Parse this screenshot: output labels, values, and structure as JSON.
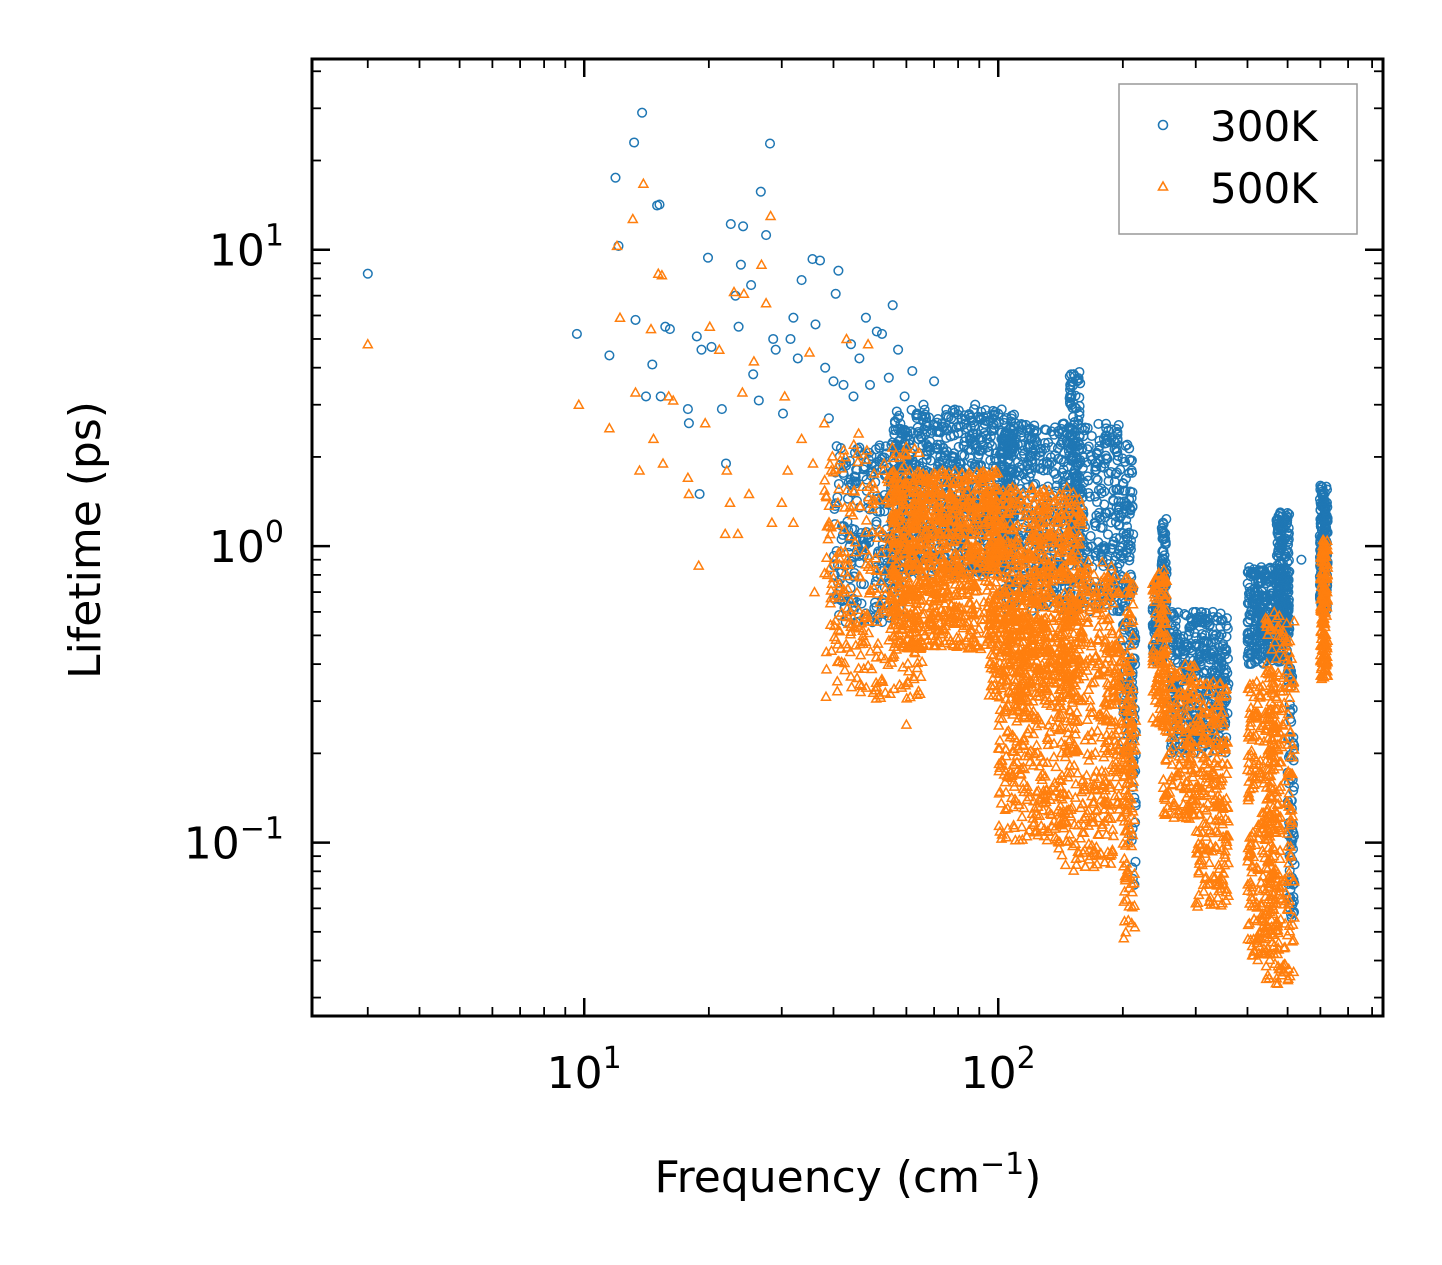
{
  "chart_data": {
    "type": "scatter",
    "title": "",
    "xlabel": "Frequency (cm",
    "xlabel_sup": "−1",
    "xlabel_end": ")",
    "ylabel": "Lifetime (ps)",
    "xscale": "log",
    "yscale": "log",
    "xlim": [
      2.2,
      850
    ],
    "ylim": [
      0.026,
      44
    ],
    "x_ticks": [
      {
        "value": 10,
        "base": "10",
        "exp": "1"
      },
      {
        "value": 100,
        "base": "10",
        "exp": "2"
      }
    ],
    "y_ticks": [
      {
        "value": 0.1,
        "base": "10",
        "exp": "−1"
      },
      {
        "value": 1,
        "base": "10",
        "exp": "0"
      },
      {
        "value": 10,
        "base": "10",
        "exp": "1"
      }
    ],
    "legend_position": "top-right",
    "series": [
      {
        "name": "300K",
        "marker": "circle",
        "color": "#1f77b4",
        "points": [
          [
            3.0,
            8.3
          ],
          [
            9.6,
            5.2
          ],
          [
            11.5,
            4.4
          ],
          [
            11.9,
            17.5
          ],
          [
            12.1,
            10.3
          ],
          [
            13.2,
            23.0
          ],
          [
            13.3,
            5.8
          ],
          [
            13.8,
            29.0
          ],
          [
            14.1,
            3.2
          ],
          [
            14.6,
            4.1
          ],
          [
            15.0,
            14.1
          ],
          [
            15.2,
            14.2
          ],
          [
            15.3,
            3.2
          ],
          [
            15.7,
            5.5
          ],
          [
            16.1,
            5.4
          ],
          [
            17.8,
            2.9
          ],
          [
            17.9,
            2.6
          ],
          [
            18.7,
            5.1
          ],
          [
            19.0,
            1.5
          ],
          [
            19.2,
            4.6
          ],
          [
            19.9,
            9.4
          ],
          [
            20.3,
            4.7
          ],
          [
            21.5,
            2.9
          ],
          [
            22.0,
            1.9
          ],
          [
            22.6,
            12.2
          ],
          [
            23.2,
            7.0
          ],
          [
            23.6,
            5.5
          ],
          [
            23.9,
            8.9
          ],
          [
            24.2,
            12.0
          ],
          [
            25.3,
            7.6
          ],
          [
            25.6,
            3.8
          ],
          [
            26.4,
            3.1
          ],
          [
            26.7,
            15.7
          ],
          [
            27.5,
            11.2
          ],
          [
            28.1,
            22.8
          ],
          [
            28.6,
            5.0
          ],
          [
            29.0,
            4.6
          ],
          [
            30.2,
            2.8
          ],
          [
            31.5,
            5.0
          ],
          [
            32.0,
            5.9
          ],
          [
            32.8,
            4.3
          ],
          [
            33.5,
            7.9
          ],
          [
            35.6,
            9.3
          ],
          [
            36.2,
            5.6
          ],
          [
            37.1,
            9.2
          ],
          [
            38.2,
            4.0
          ],
          [
            39.0,
            2.7
          ],
          [
            40.0,
            3.6
          ],
          [
            40.5,
            7.1
          ],
          [
            41.1,
            8.5
          ],
          [
            42.3,
            3.5
          ],
          [
            44.1,
            4.8
          ],
          [
            44.7,
            3.2
          ],
          [
            46.2,
            4.3
          ],
          [
            47.9,
            5.9
          ],
          [
            49.0,
            3.5
          ],
          [
            50.9,
            5.3
          ],
          [
            52.4,
            5.2
          ],
          [
            54.4,
            3.7
          ],
          [
            55.6,
            6.5
          ],
          [
            57.3,
            4.6
          ],
          [
            59.4,
            3.2
          ],
          [
            62.0,
            3.9
          ],
          [
            66.0,
            3.0
          ],
          [
            70.0,
            3.6
          ],
          [
            77.0,
            2.7
          ],
          [
            88.0,
            3.0
          ],
          [
            100.0,
            2.8
          ],
          [
            110.0,
            2.6
          ],
          [
            120.0,
            2.3
          ],
          [
            150.0,
            3.8
          ],
          [
            155.0,
            3.6
          ],
          [
            180.0,
            2.3
          ],
          [
            205.0,
            2.2
          ],
          [
            210.0,
            1.8
          ],
          [
            250.0,
            1.2
          ],
          [
            300.0,
            0.6
          ],
          [
            330.0,
            0.6
          ],
          [
            420.0,
            0.8
          ],
          [
            480.0,
            1.3
          ],
          [
            540.0,
            0.9
          ],
          [
            600.0,
            1.6
          ],
          [
            610.0,
            1.5
          ]
        ],
        "bands": [
          {
            "x": [
              40,
              60
            ],
            "y": [
              0.55,
              2.2
            ],
            "n": 260
          },
          {
            "x": [
              55,
              110
            ],
            "y": [
              0.8,
              2.9
            ],
            "n": 850
          },
          {
            "x": [
              100,
              200
            ],
            "y": [
              0.6,
              2.6
            ],
            "n": 650
          },
          {
            "x": [
              148,
              158
            ],
            "y": [
              0.9,
              3.9
            ],
            "n": 120
          },
          {
            "x": [
              200,
              212
            ],
            "y": [
              0.2,
              2.2
            ],
            "n": 120
          },
          {
            "x": [
              210,
              215
            ],
            "y": [
              0.07,
              0.6
            ],
            "n": 40
          },
          {
            "x": [
              236,
              250
            ],
            "y": [
              0.4,
              0.75
            ],
            "n": 80
          },
          {
            "x": [
              248,
              255
            ],
            "y": [
              0.5,
              1.25
            ],
            "n": 80
          },
          {
            "x": [
              260,
              360
            ],
            "y": [
              0.2,
              0.6
            ],
            "n": 380
          },
          {
            "x": [
              400,
              500
            ],
            "y": [
              0.4,
              0.85
            ],
            "n": 320
          },
          {
            "x": [
              470,
              505
            ],
            "y": [
              0.5,
              1.3
            ],
            "n": 180
          },
          {
            "x": [
              500,
              520
            ],
            "y": [
              0.055,
              0.4
            ],
            "n": 80
          },
          {
            "x": [
              598,
              625
            ],
            "y": [
              0.6,
              1.6
            ],
            "n": 180
          }
        ]
      },
      {
        "name": "500K",
        "marker": "triangle",
        "color": "#ff7f0e",
        "points": [
          [
            3.0,
            4.8
          ],
          [
            9.7,
            3.0
          ],
          [
            11.5,
            2.5
          ],
          [
            12.0,
            10.3
          ],
          [
            12.2,
            5.9
          ],
          [
            13.1,
            12.7
          ],
          [
            13.3,
            3.3
          ],
          [
            13.6,
            1.8
          ],
          [
            13.9,
            16.7
          ],
          [
            14.5,
            5.4
          ],
          [
            14.7,
            2.3
          ],
          [
            15.1,
            8.3
          ],
          [
            15.4,
            8.2
          ],
          [
            15.5,
            1.9
          ],
          [
            16.0,
            3.2
          ],
          [
            16.4,
            3.1
          ],
          [
            17.8,
            1.7
          ],
          [
            17.9,
            1.5
          ],
          [
            18.9,
            0.86
          ],
          [
            19.6,
            2.6
          ],
          [
            20.1,
            5.5
          ],
          [
            21.2,
            4.6
          ],
          [
            21.9,
            1.1
          ],
          [
            22.1,
            1.8
          ],
          [
            22.5,
            1.4
          ],
          [
            23.0,
            7.2
          ],
          [
            23.5,
            1.1
          ],
          [
            24.1,
            3.3
          ],
          [
            24.3,
            7.1
          ],
          [
            25.0,
            1.5
          ],
          [
            25.7,
            4.2
          ],
          [
            26.8,
            8.9
          ],
          [
            27.5,
            6.6
          ],
          [
            28.2,
            13.0
          ],
          [
            28.4,
            1.2
          ],
          [
            30.0,
            1.4
          ],
          [
            30.5,
            3.2
          ],
          [
            31.0,
            1.8
          ],
          [
            32.0,
            1.2
          ],
          [
            33.5,
            2.3
          ],
          [
            35.0,
            4.5
          ],
          [
            35.7,
            1.9
          ],
          [
            36.0,
            0.7
          ],
          [
            38.0,
            2.6
          ],
          [
            39.5,
            1.8
          ],
          [
            41.0,
            1.4
          ],
          [
            43.0,
            5.0
          ],
          [
            44.0,
            0.6
          ],
          [
            46.0,
            2.4
          ],
          [
            48.5,
            4.8
          ],
          [
            51.0,
            0.45
          ],
          [
            53.0,
            1.9
          ],
          [
            56.0,
            0.33
          ],
          [
            60.0,
            0.25
          ]
        ],
        "bands": [
          {
            "x": [
              38,
              66
            ],
            "y": [
              0.3,
              2.2
            ],
            "n": 320
          },
          {
            "x": [
              55,
              100
            ],
            "y": [
              0.45,
              1.8
            ],
            "n": 900
          },
          {
            "x": [
              95,
              160
            ],
            "y": [
              0.3,
              1.6
            ],
            "n": 750
          },
          {
            "x": [
              100,
              150
            ],
            "y": [
              0.1,
              0.6
            ],
            "n": 380
          },
          {
            "x": [
              140,
              190
            ],
            "y": [
              0.08,
              0.9
            ],
            "n": 300
          },
          {
            "x": [
              180,
              212
            ],
            "y": [
              0.12,
              0.8
            ],
            "n": 200
          },
          {
            "x": [
              200,
              215
            ],
            "y": [
              0.047,
              0.3
            ],
            "n": 80
          },
          {
            "x": [
              236,
              256
            ],
            "y": [
              0.25,
              0.85
            ],
            "n": 120
          },
          {
            "x": [
              250,
              300
            ],
            "y": [
              0.12,
              0.4
            ],
            "n": 180
          },
          {
            "x": [
              300,
              360
            ],
            "y": [
              0.06,
              0.35
            ],
            "n": 240
          },
          {
            "x": [
              400,
              470
            ],
            "y": [
              0.04,
              0.35
            ],
            "n": 250
          },
          {
            "x": [
              440,
              520
            ],
            "y": [
              0.033,
              0.6
            ],
            "n": 280
          },
          {
            "x": [
              600,
              625
            ],
            "y": [
              0.35,
              1.05
            ],
            "n": 160
          }
        ]
      }
    ]
  }
}
